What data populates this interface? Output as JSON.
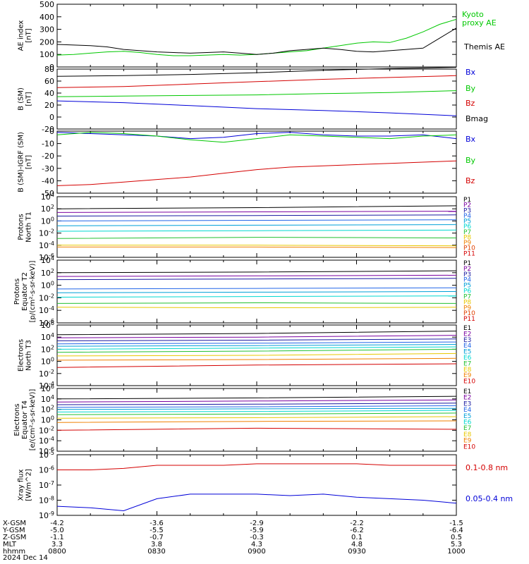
{
  "colors": {
    "black": "#000000",
    "red": "#d40000",
    "green": "#00c800",
    "blue": "#0000d8",
    "purple": "#7a00a0",
    "navy": "#1a1aa0",
    "royal": "#2266e8",
    "teal": "#00a0d8",
    "cyan": "#00d8d0",
    "green2": "#22c030",
    "yellow": "#e8c800",
    "orange": "#f08000",
    "orange_red": "#e04000",
    "maroon": "#b00000",
    "darkred": "#c80000"
  },
  "chart_data": [
    {
      "type": "line",
      "ylabel": [
        "AE index",
        "[nT]"
      ],
      "ylim": [
        0,
        500
      ],
      "yticks": [
        "0",
        "100",
        "200",
        "300",
        "400",
        "500"
      ],
      "x": [
        0,
        5,
        10,
        15,
        20,
        25,
        30,
        35,
        40,
        45,
        50,
        55,
        60,
        65,
        70,
        75,
        80,
        85,
        90,
        95,
        100,
        105,
        110,
        115,
        120
      ],
      "series": [
        {
          "name": "Kyoto proxy AE",
          "color": "#00c800",
          "values": [
            95,
            100,
            110,
            120,
            125,
            115,
            100,
            90,
            90,
            95,
            100,
            95,
            100,
            110,
            120,
            130,
            150,
            170,
            190,
            200,
            195,
            230,
            280,
            340,
            380
          ]
        },
        {
          "name": "Themis AE",
          "color": "#000000",
          "values": [
            180,
            175,
            170,
            160,
            140,
            130,
            120,
            115,
            110,
            115,
            120,
            110,
            100,
            110,
            130,
            140,
            150,
            140,
            125,
            120,
            130,
            140,
            150,
            230,
            310
          ]
        }
      ]
    },
    {
      "type": "line",
      "ylabel": [
        "B (SM)",
        "[nT]"
      ],
      "ylim": [
        -20,
        80
      ],
      "yticks": [
        "-20",
        "0",
        "20",
        "40",
        "60",
        "80"
      ],
      "x": [
        0,
        20,
        40,
        60,
        80,
        100,
        120
      ],
      "series": [
        {
          "name": "Bx",
          "color": "#0000d8",
          "values": [
            27,
            24,
            19,
            14,
            11,
            7,
            2
          ]
        },
        {
          "name": "By",
          "color": "#00c800",
          "values": [
            34,
            35,
            36,
            37,
            39,
            41,
            44
          ]
        },
        {
          "name": "Bz",
          "color": "#d40000",
          "values": [
            49,
            51,
            55,
            59,
            63,
            66,
            69
          ]
        },
        {
          "name": "Bmag",
          "color": "#000000",
          "values": [
            68,
            69,
            71,
            74,
            78,
            81,
            83
          ]
        }
      ]
    },
    {
      "type": "line",
      "ylabel": [
        "B (SM)-IGRF (SM)",
        "[nT]"
      ],
      "ylim": [
        -50,
        0
      ],
      "yticks": [
        "-50",
        "-40",
        "-30",
        "-20",
        "-10",
        "0"
      ],
      "x": [
        0,
        10,
        20,
        30,
        40,
        50,
        60,
        70,
        80,
        90,
        100,
        110,
        120
      ],
      "series": [
        {
          "name": "Bx",
          "color": "#0000d8",
          "values": [
            -1,
            -2,
            -3,
            -4,
            -6,
            -5,
            -2,
            -1,
            -3,
            -4,
            -4,
            -3,
            -6
          ]
        },
        {
          "name": "By",
          "color": "#00c800",
          "values": [
            -3,
            -1,
            -2,
            -4,
            -7,
            -9,
            -6,
            -3,
            -4,
            -5,
            -6,
            -4,
            -3
          ]
        },
        {
          "name": "Bz",
          "color": "#d40000",
          "values": [
            -44,
            -43,
            -41,
            -39,
            -37,
            -34,
            -31,
            -29,
            -28,
            -27,
            -26,
            -25,
            -24
          ]
        }
      ]
    },
    {
      "type": "line",
      "log": true,
      "ylabel": [
        "Protons",
        "North T1"
      ],
      "ylim": [
        -6,
        4
      ],
      "yticks": [
        "10-6",
        "10-4",
        "10-2",
        "100",
        "102",
        "104"
      ],
      "x": [
        0,
        60,
        120
      ],
      "series": [
        {
          "name": "P1",
          "color": "#000000",
          "values": [
            2.0,
            2.2,
            2.5
          ]
        },
        {
          "name": "P2",
          "color": "#7a00a0",
          "values": [
            1.4,
            1.5,
            1.6
          ]
        },
        {
          "name": "P3",
          "color": "#1a1aa0",
          "values": [
            0.8,
            0.9,
            1.0
          ]
        },
        {
          "name": "P4",
          "color": "#2266e8",
          "values": [
            0.0,
            0.1,
            0.2
          ]
        },
        {
          "name": "P5",
          "color": "#00a0d8",
          "values": [
            -0.8,
            -0.7,
            -0.6
          ]
        },
        {
          "name": "P6",
          "color": "#00d8d0",
          "values": [
            -1.7,
            -1.6,
            -1.5
          ]
        },
        {
          "name": "P7",
          "color": "#22c030",
          "values": [
            -2.9,
            -2.7,
            -2.8
          ]
        },
        {
          "name": "P8",
          "color": "#e8c800",
          "values": [
            -4.0,
            -4.0,
            -4.1
          ]
        },
        {
          "name": "P9",
          "color": "#f08000",
          "values": [
            -4.3,
            -4.3,
            -4.4
          ]
        }
      ],
      "legend": [
        "P1",
        "P2",
        "P3",
        "P4",
        "P5",
        "P6",
        "P7",
        "P8",
        "P9",
        "P10",
        "P11"
      ]
    },
    {
      "type": "line",
      "log": true,
      "ylabel": [
        "Protons",
        "Equator T2",
        "[p/(cm²-s-sr-keV)]"
      ],
      "ylim": [
        -6,
        4
      ],
      "yticks": [
        "10-6",
        "10-4",
        "10-2",
        "100",
        "102",
        "104"
      ],
      "x": [
        0,
        60,
        120
      ],
      "series": [
        {
          "name": "P1",
          "color": "#000000",
          "values": [
            2.0,
            2.1,
            2.3
          ]
        },
        {
          "name": "P2",
          "color": "#7a00a0",
          "values": [
            1.4,
            1.5,
            1.6
          ]
        },
        {
          "name": "P3",
          "color": "#1a1aa0",
          "values": [
            0.9,
            1.0,
            1.1
          ]
        },
        {
          "name": "P4",
          "color": "#2266e8",
          "values": [
            -0.6,
            -0.5,
            -0.4
          ]
        },
        {
          "name": "P5",
          "color": "#00a0d8",
          "values": [
            -1.2,
            -1.1,
            -1.0
          ]
        },
        {
          "name": "P6",
          "color": "#00d8d0",
          "values": [
            -1.9,
            -1.8,
            -1.7
          ]
        },
        {
          "name": "P7",
          "color": "#22c030",
          "values": [
            -2.9,
            -2.8,
            -2.9
          ]
        },
        {
          "name": "P8",
          "color": "#e8c800",
          "values": [
            -3.5,
            -3.6,
            -3.5
          ]
        }
      ],
      "legend": [
        "P1",
        "P2",
        "P3",
        "P4",
        "P5",
        "P6",
        "P7",
        "P8",
        "P9",
        "P10",
        "P11"
      ]
    },
    {
      "type": "line",
      "log": true,
      "ylabel": [
        "Electrons",
        "North T3"
      ],
      "ylim": [
        -4,
        6
      ],
      "yticks": [
        "10-4",
        "10-2",
        "100",
        "102",
        "104",
        "106"
      ],
      "x": [
        0,
        60,
        120
      ],
      "series": [
        {
          "name": "E1",
          "color": "#000000",
          "values": [
            4.4,
            4.6,
            5.0
          ]
        },
        {
          "name": "E2",
          "color": "#7a00a0",
          "values": [
            3.9,
            4.0,
            4.3
          ]
        },
        {
          "name": "E3",
          "color": "#1a1aa0",
          "values": [
            3.4,
            3.5,
            3.7
          ]
        },
        {
          "name": "E4",
          "color": "#2266e8",
          "values": [
            2.9,
            3.0,
            3.2
          ]
        },
        {
          "name": "E5",
          "color": "#00a0d8",
          "values": [
            2.5,
            2.6,
            2.8
          ]
        },
        {
          "name": "E6",
          "color": "#00d8d0",
          "values": [
            2.0,
            2.2,
            2.4
          ]
        },
        {
          "name": "E7",
          "color": "#22c030",
          "values": [
            1.5,
            1.7,
            2.0
          ]
        },
        {
          "name": "E8",
          "color": "#e8c800",
          "values": [
            0.9,
            1.0,
            1.3
          ]
        },
        {
          "name": "E9",
          "color": "#f08000",
          "values": [
            0.2,
            0.3,
            0.5
          ]
        },
        {
          "name": "E10",
          "color": "#d40000",
          "values": [
            -1.0,
            -0.6,
            -0.4
          ]
        }
      ],
      "legend": [
        "E1",
        "E2",
        "E3",
        "E4",
        "E5",
        "E6",
        "E7",
        "E8",
        "E9",
        "E10"
      ]
    },
    {
      "type": "line",
      "log": true,
      "ylabel": [
        "Electrons",
        "Equator T4",
        "[e/(cm²-s-sr-keV)]"
      ],
      "ylim": [
        -6,
        6
      ],
      "yticks": [
        "10-6",
        "10-4",
        "10-2",
        "100",
        "102",
        "104",
        "106"
      ],
      "x": [
        0,
        60,
        120
      ],
      "series": [
        {
          "name": "E1",
          "color": "#000000",
          "values": [
            4.0,
            4.2,
            4.5
          ]
        },
        {
          "name": "E2",
          "color": "#7a00a0",
          "values": [
            3.4,
            3.6,
            3.8
          ]
        },
        {
          "name": "E3",
          "color": "#1a1aa0",
          "values": [
            2.9,
            3.0,
            3.2
          ]
        },
        {
          "name": "E4",
          "color": "#2266e8",
          "values": [
            2.4,
            2.5,
            2.7
          ]
        },
        {
          "name": "E5",
          "color": "#00a0d8",
          "values": [
            2.0,
            2.1,
            2.2
          ]
        },
        {
          "name": "E6",
          "color": "#00d8d0",
          "values": [
            1.5,
            1.6,
            1.8
          ]
        },
        {
          "name": "E7",
          "color": "#22c030",
          "values": [
            1.0,
            1.1,
            1.3
          ]
        },
        {
          "name": "E8",
          "color": "#e8c800",
          "values": [
            0.3,
            0.4,
            0.6
          ]
        },
        {
          "name": "E9",
          "color": "#f08000",
          "values": [
            -0.5,
            -0.3,
            -0.2
          ]
        },
        {
          "name": "E10",
          "color": "#d40000",
          "values": [
            -2.0,
            -1.6,
            -1.8
          ]
        }
      ],
      "legend": [
        "E1",
        "E2",
        "E3",
        "E4",
        "E5",
        "E6",
        "E7",
        "E8",
        "E9",
        "E10"
      ]
    },
    {
      "type": "line",
      "log": true,
      "ylabel": [
        "Xray flux",
        "[W/m^2]"
      ],
      "ylim": [
        -9,
        -5
      ],
      "yticks": [
        "10-9",
        "10-8",
        "10-7",
        "10-6",
        "10-5"
      ],
      "x": [
        0,
        10,
        20,
        30,
        40,
        50,
        60,
        70,
        80,
        90,
        100,
        110,
        120
      ],
      "series": [
        {
          "name": "0.1-0.8 nm",
          "color": "#d40000",
          "values": [
            -6.0,
            -6.0,
            -5.9,
            -5.7,
            -5.7,
            -5.7,
            -5.6,
            -5.6,
            -5.6,
            -5.6,
            -5.7,
            -5.7,
            -5.7
          ]
        },
        {
          "name": "0.05-0.4 nm",
          "color": "#0000d8",
          "values": [
            -8.4,
            -8.5,
            -8.7,
            -7.9,
            -7.6,
            -7.6,
            -7.6,
            -7.7,
            -7.6,
            -7.8,
            -7.9,
            -8.0,
            -8.2
          ]
        }
      ]
    }
  ],
  "footer": {
    "rows": [
      {
        "label": "X-GSM",
        "values": [
          "-4.2",
          "-3.6",
          "-2.9",
          "-2.2",
          "-1.5"
        ]
      },
      {
        "label": "Y-GSM",
        "values": [
          "-5.0",
          "-5.5",
          "-5.9",
          "-6.2",
          "-6.4"
        ]
      },
      {
        "label": "Z-GSM",
        "values": [
          "-1.1",
          "-0.7",
          "-0.3",
          "0.1",
          "0.5"
        ]
      },
      {
        "label": "MLT",
        "values": [
          "3.3",
          "3.8",
          "4.3",
          "4.8",
          "5.3"
        ]
      },
      {
        "label": "hhmm",
        "values": [
          "0800",
          "0830",
          "0900",
          "0930",
          "1000"
        ]
      }
    ],
    "date": "2024 Dec 14"
  }
}
